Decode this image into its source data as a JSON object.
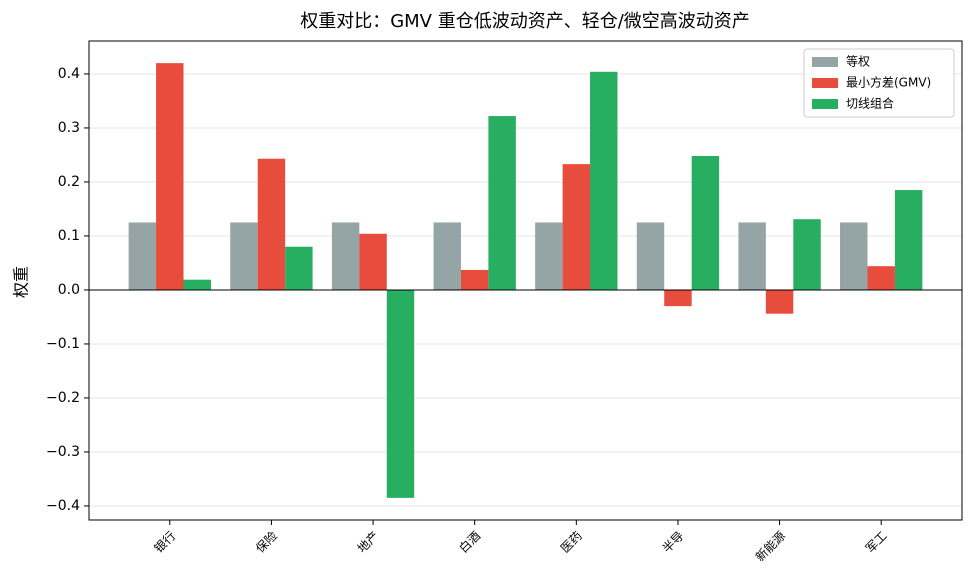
{
  "chart_data": {
    "type": "bar",
    "title": "权重对比：GMV 重仓低波动资产、轻仓/微空高波动资产",
    "y_label": "权重",
    "categories": [
      "银行",
      "保险",
      "地产",
      "白酒",
      "医药",
      "半导",
      "新能源",
      "军工"
    ],
    "series": [
      {
        "name": "等权",
        "color": "#95a5a6",
        "values": [
          0.125,
          0.125,
          0.125,
          0.125,
          0.125,
          0.125,
          0.125,
          0.125
        ]
      },
      {
        "name": "最小方差(GMV)",
        "color": "#e74c3c",
        "values": [
          0.42,
          0.243,
          0.104,
          0.037,
          0.233,
          -0.03,
          -0.044,
          0.044
        ]
      },
      {
        "name": "切线组合",
        "color": "#27ae60",
        "values": [
          0.019,
          0.08,
          -0.385,
          0.322,
          0.404,
          0.248,
          0.131,
          0.185
        ]
      }
    ],
    "ylim": [
      -0.426,
      0.461
    ],
    "yticks": [
      {
        "value": -0.4,
        "label": "−0.4"
      },
      {
        "value": -0.3,
        "label": "−0.3"
      },
      {
        "value": -0.2,
        "label": "−0.2"
      },
      {
        "value": -0.1,
        "label": "−0.1"
      },
      {
        "value": 0,
        "label": "0.0"
      },
      0.1,
      0.2,
      0.3,
      0.4
    ],
    "grid": true,
    "legend": "upper right"
  }
}
